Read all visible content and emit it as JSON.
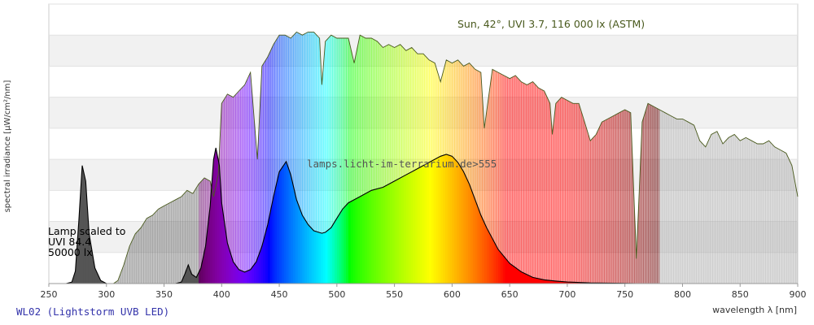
{
  "chart_data": {
    "type": "spectrum",
    "title": "WL02 (Lightstorm UVB LED)",
    "x_label": "wavelength λ [nm]",
    "y_label": "spectral irradiance [µW/cm²/nm]",
    "annotations": [
      "Sun, 42°, UVI 3.7, 116 000 lx (ASTM)",
      "lamps.licht-im-terrarium.de>555",
      "Lamp scaled to",
      "UVI 84.4",
      "50000 lx"
    ],
    "xlim": [
      250,
      900
    ],
    "xticks": [
      250,
      300,
      350,
      400,
      450,
      500,
      550,
      600,
      650,
      700,
      750,
      800,
      850,
      900
    ],
    "ylim": [
      0,
      9
    ],
    "series": [
      {
        "name": "Sun",
        "color": "#4a5a1e",
        "x": [
          306,
          310,
          315,
          320,
          325,
          330,
          335,
          340,
          345,
          350,
          355,
          360,
          365,
          370,
          375,
          380,
          385,
          390,
          393,
          397,
          400,
          405,
          410,
          415,
          420,
          425,
          431,
          435,
          440,
          445,
          450,
          455,
          460,
          465,
          470,
          475,
          480,
          485,
          487,
          490,
          495,
          500,
          505,
          510,
          515,
          520,
          525,
          530,
          535,
          540,
          545,
          550,
          555,
          560,
          565,
          570,
          575,
          580,
          585,
          590,
          595,
          600,
          605,
          610,
          615,
          620,
          625,
          628,
          635,
          640,
          645,
          650,
          655,
          660,
          665,
          670,
          675,
          680,
          685,
          687,
          690,
          695,
          700,
          705,
          710,
          715,
          720,
          725,
          730,
          735,
          740,
          745,
          750,
          755,
          760,
          765,
          770,
          775,
          780,
          785,
          790,
          795,
          800,
          805,
          810,
          815,
          820,
          825,
          830,
          835,
          840,
          845,
          850,
          855,
          860,
          865,
          870,
          875,
          880,
          885,
          890,
          895,
          900
        ],
        "values": [
          0,
          0.1,
          0.6,
          1.2,
          1.6,
          1.8,
          2.1,
          2.2,
          2.4,
          2.5,
          2.6,
          2.7,
          2.8,
          3.0,
          2.9,
          3.2,
          3.4,
          3.3,
          2.8,
          3.5,
          5.8,
          6.1,
          6.0,
          6.2,
          6.4,
          6.8,
          4.0,
          7.0,
          7.3,
          7.7,
          8.0,
          8.0,
          7.9,
          8.1,
          8.0,
          8.1,
          8.1,
          7.9,
          6.4,
          7.8,
          8.0,
          7.9,
          7.9,
          7.9,
          7.1,
          8.0,
          7.9,
          7.9,
          7.8,
          7.6,
          7.7,
          7.6,
          7.7,
          7.5,
          7.6,
          7.4,
          7.4,
          7.2,
          7.1,
          6.5,
          7.2,
          7.1,
          7.2,
          7.0,
          7.1,
          6.9,
          6.8,
          5.0,
          6.9,
          6.8,
          6.7,
          6.6,
          6.7,
          6.5,
          6.4,
          6.5,
          6.3,
          6.2,
          5.8,
          4.8,
          5.8,
          6.0,
          5.9,
          5.8,
          5.8,
          5.2,
          4.6,
          4.8,
          5.2,
          5.3,
          5.4,
          5.5,
          5.6,
          5.5,
          0.8,
          5.2,
          5.8,
          5.7,
          5.6,
          5.5,
          5.4,
          5.3,
          5.3,
          5.2,
          5.1,
          4.6,
          4.4,
          4.8,
          4.9,
          4.5,
          4.7,
          4.8,
          4.6,
          4.7,
          4.6,
          4.5,
          4.5,
          4.6,
          4.4,
          4.3,
          4.2,
          3.8,
          2.8
        ]
      },
      {
        "name": "Lamp",
        "color": "#000000",
        "x": [
          250,
          265,
          270,
          273,
          276,
          279,
          282,
          285,
          290,
          295,
          300,
          360,
          365,
          368,
          371,
          374,
          378,
          382,
          386,
          390,
          393,
          395,
          398,
          400,
          405,
          410,
          415,
          420,
          425,
          430,
          435,
          440,
          445,
          450,
          456,
          460,
          465,
          470,
          475,
          480,
          487,
          490,
          495,
          500,
          505,
          510,
          520,
          530,
          540,
          550,
          560,
          570,
          580,
          590,
          595,
          600,
          605,
          610,
          615,
          620,
          625,
          630,
          640,
          650,
          660,
          670,
          680,
          690,
          700,
          720,
          760,
          800,
          900
        ],
        "values": [
          0,
          0,
          0.05,
          0.4,
          2.0,
          3.8,
          3.3,
          1.6,
          0.5,
          0.1,
          0,
          0,
          0.05,
          0.3,
          0.6,
          0.3,
          0.2,
          0.5,
          1.2,
          2.5,
          4.0,
          4.37,
          3.8,
          2.6,
          1.3,
          0.7,
          0.45,
          0.37,
          0.45,
          0.7,
          1.2,
          1.9,
          2.8,
          3.6,
          3.93,
          3.5,
          2.7,
          2.2,
          1.9,
          1.7,
          1.62,
          1.65,
          1.8,
          2.1,
          2.4,
          2.6,
          2.8,
          3.0,
          3.1,
          3.3,
          3.5,
          3.7,
          3.9,
          4.1,
          4.16,
          4.1,
          3.9,
          3.6,
          3.2,
          2.7,
          2.2,
          1.8,
          1.1,
          0.65,
          0.38,
          0.2,
          0.12,
          0.08,
          0.05,
          0.02,
          0,
          0,
          0
        ]
      }
    ]
  }
}
